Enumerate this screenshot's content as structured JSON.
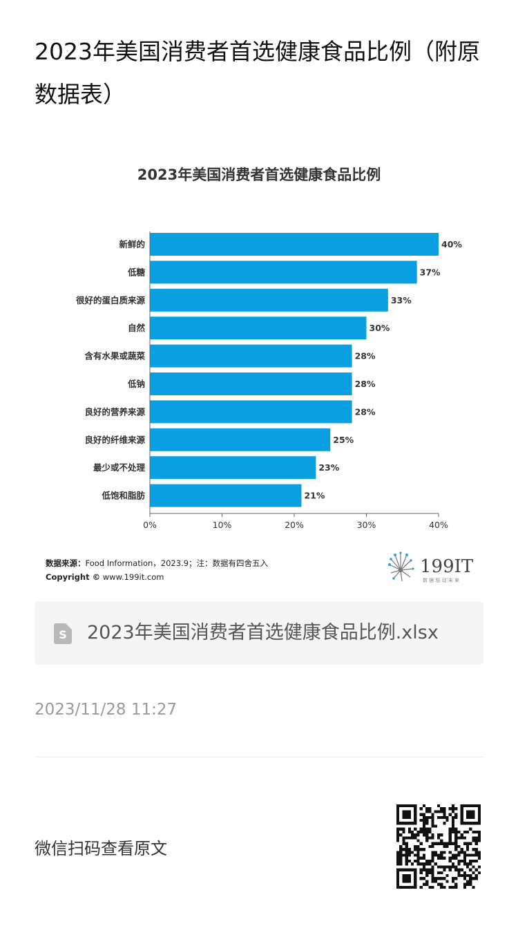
{
  "article": {
    "title": "2023年美国消费者首选健康食品比例（附原数据表）"
  },
  "chart_data": {
    "type": "bar",
    "orientation": "horizontal",
    "title": "2023年美国消费者首选健康食品比例",
    "categories": [
      "新鲜的",
      "低糖",
      "很好的蛋白质来源",
      "自然",
      "含有水果或蔬菜",
      "低钠",
      "良好的营养来源",
      "良好的纤维来源",
      "最少或不处理",
      "低饱和脂肪"
    ],
    "values": [
      40,
      37,
      33,
      30,
      28,
      28,
      28,
      25,
      23,
      21
    ],
    "value_labels": [
      "40%",
      "37%",
      "33%",
      "30%",
      "28%",
      "28%",
      "28%",
      "25%",
      "23%",
      "21%"
    ],
    "xlim": [
      0,
      40
    ],
    "xticks": [
      "0%",
      "10%",
      "20%",
      "30%",
      "40%"
    ],
    "bar_color": "#0a9fe0",
    "grid": false
  },
  "chart_footer": {
    "source_label": "数据来源：",
    "source_text": "Food Information，2023.9；注：数据有四舍五入",
    "copyright_label": "Copyright ©",
    "copyright_text": " www.199it.com",
    "logo_text": "199IT",
    "logo_tagline": "数 据 驱 动 未 来"
  },
  "attachment": {
    "icon": "spreadsheet-file-icon",
    "filename": "2023年美国消费者首选健康食品比例.xlsx"
  },
  "meta": {
    "timestamp": "2023/11/28 11:27",
    "qr_label": "微信扫码查看原文",
    "qr_icon": "qr-code-icon"
  }
}
